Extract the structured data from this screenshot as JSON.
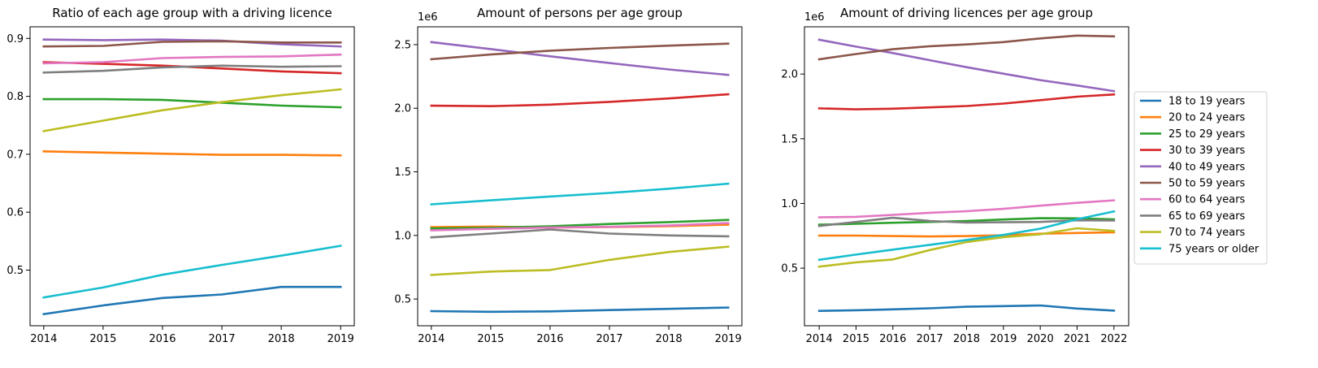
{
  "chart_data": [
    {
      "type": "line",
      "title": "Ratio of each age group with a driving licence",
      "xlabel": "",
      "ylabel": "",
      "x": [
        2014,
        2015,
        2016,
        2017,
        2018,
        2019
      ],
      "xlim": [
        2013.77,
        2019.23
      ],
      "ylim": [
        0.404,
        0.92
      ],
      "yticks": [
        0.5,
        0.6,
        0.7,
        0.8,
        0.9
      ],
      "ytick_labels": [
        "0.5",
        "0.6",
        "0.7",
        "0.8",
        "0.9"
      ],
      "offset_text": "",
      "grid": false,
      "legend": false,
      "series": [
        {
          "name": "18 to 19 years",
          "color": "#1f77b4",
          "values": [
            0.424,
            0.439,
            0.452,
            0.458,
            0.471,
            0.471
          ]
        },
        {
          "name": "20 to 24 years",
          "color": "#ff7f0e",
          "values": [
            0.705,
            0.703,
            0.701,
            0.699,
            0.699,
            0.698
          ]
        },
        {
          "name": "25 to 29 years",
          "color": "#2ca02c",
          "values": [
            0.795,
            0.795,
            0.794,
            0.789,
            0.784,
            0.781
          ]
        },
        {
          "name": "30 to 39 years",
          "color": "#d62728",
          "values": [
            0.859,
            0.856,
            0.853,
            0.848,
            0.843,
            0.84
          ]
        },
        {
          "name": "40 to 49 years",
          "color": "#9467bd",
          "values": [
            0.898,
            0.897,
            0.898,
            0.896,
            0.89,
            0.886
          ]
        },
        {
          "name": "50 to 59 years",
          "color": "#8c564b",
          "values": [
            0.886,
            0.887,
            0.894,
            0.895,
            0.893,
            0.893
          ]
        },
        {
          "name": "60 to 64 years",
          "color": "#e377c2",
          "values": [
            0.857,
            0.859,
            0.866,
            0.868,
            0.869,
            0.872
          ]
        },
        {
          "name": "65 to 69 years",
          "color": "#7f7f7f",
          "values": [
            0.841,
            0.844,
            0.85,
            0.853,
            0.851,
            0.852
          ]
        },
        {
          "name": "70 to 74 years",
          "color": "#bcbd22",
          "values": [
            0.74,
            0.758,
            0.776,
            0.79,
            0.802,
            0.812
          ]
        },
        {
          "name": "75 years or older",
          "color": "#17becf",
          "values": [
            0.453,
            0.47,
            0.492,
            0.509,
            0.525,
            0.542
          ]
        }
      ]
    },
    {
      "type": "line",
      "title": "Amount of persons per age group",
      "xlabel": "",
      "ylabel": "",
      "x": [
        2014,
        2015,
        2016,
        2017,
        2018,
        2019
      ],
      "xlim": [
        2013.77,
        2019.23
      ],
      "ylim": [
        290000,
        2640000
      ],
      "yticks": [
        500000,
        1000000,
        1500000,
        2000000,
        2500000
      ],
      "ytick_labels": [
        "0.5",
        "1.0",
        "1.5",
        "2.0",
        "2.5"
      ],
      "offset_text": "1e6",
      "grid": false,
      "legend": false,
      "series": [
        {
          "name": "18 to 19 years",
          "color": "#1f77b4",
          "values": [
            405000,
            400000,
            403000,
            413000,
            423000,
            433000
          ]
        },
        {
          "name": "20 to 24 years",
          "color": "#ff7f0e",
          "values": [
            1065000,
            1070000,
            1062000,
            1066000,
            1072000,
            1085000
          ]
        },
        {
          "name": "25 to 29 years",
          "color": "#2ca02c",
          "values": [
            1055000,
            1060000,
            1072000,
            1090000,
            1105000,
            1122000
          ]
        },
        {
          "name": "30 to 39 years",
          "color": "#d62728",
          "values": [
            2020000,
            2016000,
            2028000,
            2050000,
            2077000,
            2110000
          ]
        },
        {
          "name": "40 to 49 years",
          "color": "#9467bd",
          "values": [
            2520000,
            2465000,
            2408000,
            2355000,
            2305000,
            2262000
          ]
        },
        {
          "name": "50 to 59 years",
          "color": "#8c564b",
          "values": [
            2385000,
            2422000,
            2452000,
            2474000,
            2492000,
            2508000
          ]
        },
        {
          "name": "60 to 64 years",
          "color": "#e377c2",
          "values": [
            1040000,
            1052000,
            1062000,
            1068000,
            1078000,
            1098000
          ]
        },
        {
          "name": "65 to 69 years",
          "color": "#7f7f7f",
          "values": [
            985000,
            1015000,
            1047000,
            1015000,
            1000000,
            993000
          ]
        },
        {
          "name": "70 to 74 years",
          "color": "#bcbd22",
          "values": [
            690000,
            716000,
            728000,
            808000,
            870000,
            912000
          ]
        },
        {
          "name": "75 years or older",
          "color": "#17becf",
          "values": [
            1245000,
            1276000,
            1306000,
            1334000,
            1367000,
            1407000
          ]
        }
      ]
    },
    {
      "type": "line",
      "title": "Amount of driving licences per age group",
      "xlabel": "",
      "ylabel": "",
      "x": [
        2014,
        2015,
        2016,
        2017,
        2018,
        2019,
        2020,
        2021,
        2022
      ],
      "xlim": [
        2013.6,
        2022.4
      ],
      "ylim": [
        55000,
        2365000
      ],
      "yticks": [
        500000,
        1000000,
        1500000,
        2000000
      ],
      "ytick_labels": [
        "0.5",
        "1.0",
        "1.5",
        "2.0"
      ],
      "offset_text": "1e6",
      "grid": false,
      "legend": true,
      "legend_position": "center-right outside",
      "series": [
        {
          "name": "18 to 19 years",
          "color": "#1f77b4",
          "values": [
            170000,
            175000,
            182000,
            190000,
            202000,
            207000,
            212000,
            188000,
            172000
          ]
        },
        {
          "name": "20 to 24 years",
          "color": "#ff7f0e",
          "values": [
            752000,
            752000,
            748000,
            745000,
            748000,
            754000,
            766000,
            772000,
            777000
          ]
        },
        {
          "name": "25 to 29 years",
          "color": "#2ca02c",
          "values": [
            836000,
            843000,
            851000,
            857000,
            864000,
            876000,
            886000,
            885000,
            877000
          ]
        },
        {
          "name": "30 to 39 years",
          "color": "#d62728",
          "values": [
            1735000,
            1727000,
            1732000,
            1742000,
            1753000,
            1772000,
            1798000,
            1825000,
            1842000
          ]
        },
        {
          "name": "40 to 49 years",
          "color": "#9467bd",
          "values": [
            2265000,
            2212000,
            2162000,
            2107000,
            2053000,
            2003000,
            1953000,
            1912000,
            1868000
          ]
        },
        {
          "name": "50 to 59 years",
          "color": "#8c564b",
          "values": [
            2114000,
            2155000,
            2192000,
            2215000,
            2229000,
            2247000,
            2275000,
            2297000,
            2291000
          ]
        },
        {
          "name": "60 to 64 years",
          "color": "#e377c2",
          "values": [
            893000,
            897000,
            912000,
            928000,
            940000,
            958000,
            983000,
            1005000,
            1024000
          ]
        },
        {
          "name": "65 to 69 years",
          "color": "#7f7f7f",
          "values": [
            826000,
            857000,
            889000,
            865000,
            852000,
            855000,
            857000,
            870000,
            868000
          ]
        },
        {
          "name": "70 to 74 years",
          "color": "#bcbd22",
          "values": [
            512000,
            545000,
            567000,
            640000,
            702000,
            740000,
            762000,
            808000,
            788000
          ]
        },
        {
          "name": "75 years or older",
          "color": "#17becf",
          "values": [
            565000,
            605000,
            643000,
            680000,
            718000,
            757000,
            805000,
            878000,
            938000
          ]
        }
      ]
    }
  ]
}
